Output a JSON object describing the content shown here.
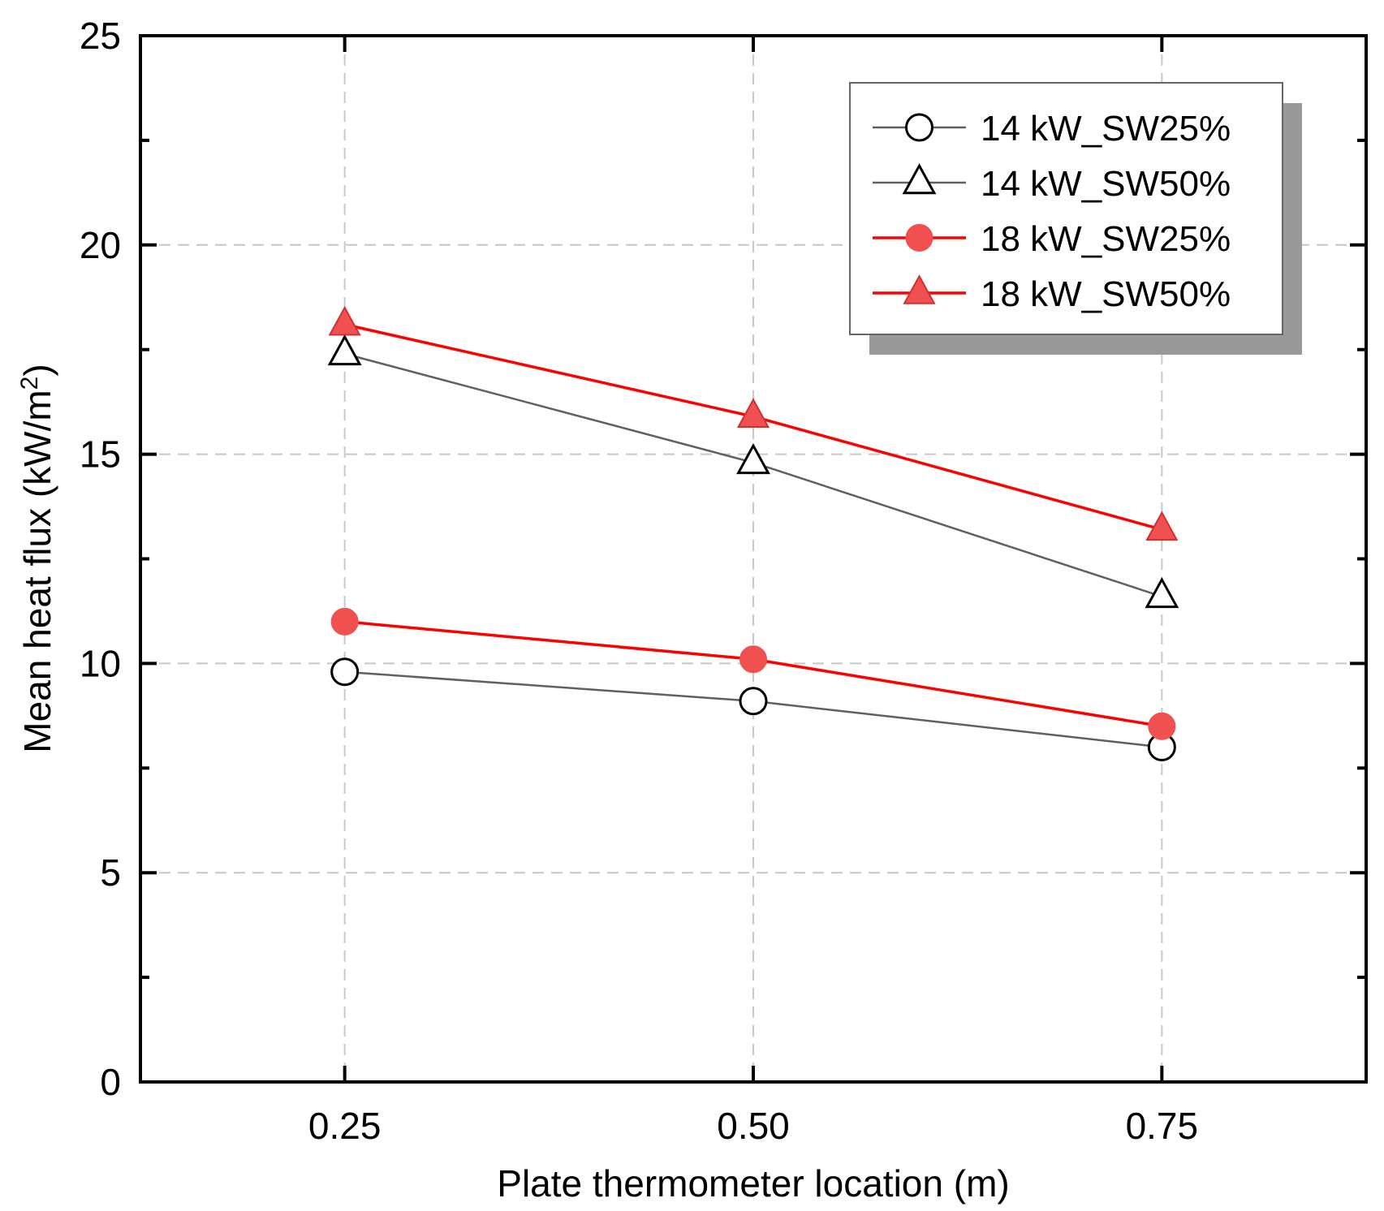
{
  "chart_data": {
    "type": "line",
    "title": "",
    "xlabel": "Plate thermometer location (m)",
    "ylabel_main": "Mean heat flux (kW/m",
    "ylabel_sup": "2",
    "ylabel_close": ")",
    "x": [
      0.25,
      0.5,
      0.75
    ],
    "x_tick_labels": [
      "0.25",
      "0.50",
      "0.75"
    ],
    "xlim": [
      0.125,
      0.875
    ],
    "ylim": [
      0,
      25
    ],
    "y_ticks": [
      0,
      5,
      10,
      15,
      20,
      25
    ],
    "y_tick_labels": [
      "0",
      "5",
      "10",
      "15",
      "20",
      "25"
    ],
    "y_minor_ticks": [
      2.5,
      7.5,
      12.5,
      17.5,
      22.5
    ],
    "grid": true,
    "legend_position": "top-right",
    "series": [
      {
        "name": "14 kW_SW25%",
        "values": [
          9.8,
          9.1,
          8.0
        ],
        "color": "#606060",
        "marker": "circle",
        "filled": false
      },
      {
        "name": "14 kW_SW50%",
        "values": [
          17.4,
          14.8,
          11.6
        ],
        "color": "#606060",
        "marker": "triangle",
        "filled": false
      },
      {
        "name": "18 kW_SW25%",
        "values": [
          11.0,
          10.1,
          8.5
        ],
        "color": "#ff0000",
        "marker": "circle",
        "filled": true,
        "fill": "#f05050"
      },
      {
        "name": "18 kW_SW50%",
        "values": [
          18.1,
          15.9,
          13.2
        ],
        "color": "#ff0000",
        "marker": "triangle",
        "filled": true,
        "fill": "#f05050"
      }
    ]
  }
}
